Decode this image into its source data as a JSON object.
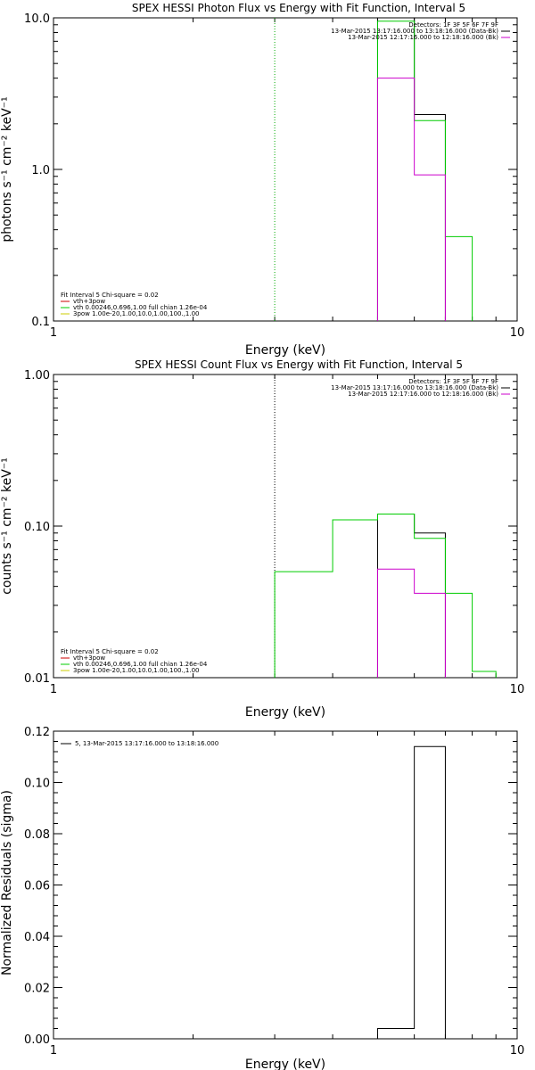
{
  "chart_data": [
    {
      "type": "line",
      "title": "SPEX HESSI Photon Flux vs Energy with Fit Function, Interval 5",
      "xlabel": "Energy (keV)",
      "ylabel": "photons s⁻¹ cm⁻² keV⁻¹",
      "xscale": "log",
      "yscale": "log",
      "xlim": [
        1,
        10
      ],
      "ylim": [
        0.1,
        10
      ],
      "xticks": [
        "1",
        "10"
      ],
      "yticks": [
        {
          "v": 0.1,
          "label": "0.1"
        },
        {
          "v": 1,
          "label": "1.0"
        },
        {
          "v": 10,
          "label": "10.0"
        }
      ],
      "vline": {
        "x": 3.0,
        "color": "#00aa00"
      },
      "legend": {
        "lines": [
          {
            "text": "Detectors: 1F 3F 5F 6F 7F 9F",
            "color": ""
          },
          {
            "text": "13-Mar-2015 13:17:16.000 to 13:18:16.000 (Data-Bk)",
            "color": "#000000"
          },
          {
            "text": "13-Mar-2015 12:17:16.000 to 12:18:16.000 (Bk)",
            "color": "#cc00cc"
          }
        ]
      },
      "fit_legend": {
        "lines": [
          {
            "text": "Fit Interval 5   Chi-square = 0.02",
            "color": ""
          },
          {
            "text": "vth+3pow",
            "color": "#cc0000"
          },
          {
            "text": "vth 0.00246,0.696,1.00  full chian 1.26e-04",
            "color": "#00cc00"
          },
          {
            "text": "3pow 1.00e-20,1.00,10.0,1.00,100.,1.00",
            "color": "#cccc00"
          }
        ]
      },
      "series": [
        {
          "color": "#000000",
          "bins": [
            [
              5.0,
              6.0,
              10.0
            ],
            [
              6.0,
              7.0,
              2.3
            ]
          ]
        },
        {
          "color": "#00cc00",
          "bins": [
            [
              5.0,
              6.0,
              9.5
            ],
            [
              6.0,
              7.0,
              2.1
            ],
            [
              7.0,
              8.0,
              0.36
            ]
          ]
        },
        {
          "color": "#cc00cc",
          "bins": [
            [
              5.0,
              6.0,
              4.0
            ],
            [
              6.0,
              7.0,
              0.92
            ]
          ]
        }
      ]
    },
    {
      "type": "line",
      "title": "SPEX HESSI Count Flux vs Energy with Fit Function, Interval 5",
      "xlabel": "Energy (keV)",
      "ylabel": "counts s⁻¹ cm⁻² keV⁻¹",
      "xscale": "log",
      "yscale": "log",
      "xlim": [
        1,
        10
      ],
      "ylim": [
        0.01,
        1
      ],
      "xticks": [
        "1",
        "10"
      ],
      "yticks": [
        {
          "v": 0.01,
          "label": "0.01"
        },
        {
          "v": 0.1,
          "label": "0.10"
        },
        {
          "v": 1,
          "label": "1.00"
        }
      ],
      "vline": {
        "x": 3.0,
        "color": "#000000"
      },
      "legend": {
        "lines": [
          {
            "text": "Detectors: 1F 3F 5F 6F 7F 9F",
            "color": ""
          },
          {
            "text": "13-Mar-2015 13:17:16.000 to 13:18:16.000 (Data-Bk)",
            "color": "#000000"
          },
          {
            "text": "13-Mar-2015 12:17:16.000 to 12:18:16.000 (Bk)",
            "color": "#cc00cc"
          }
        ]
      },
      "fit_legend": {
        "lines": [
          {
            "text": "Fit Interval 5   Chi-square = 0.02",
            "color": ""
          },
          {
            "text": "vth+3pow",
            "color": "#cc0000"
          },
          {
            "text": "vth 0.00246,0.696,1.00  full chian 1.26e-04",
            "color": "#00cc00"
          },
          {
            "text": "3pow 1.00e-20,1.00,10.0,1.00,100.,1.00",
            "color": "#cccc00"
          }
        ]
      },
      "series": [
        {
          "color": "#000000",
          "bins": [
            [
              5.0,
              6.0,
              0.12
            ],
            [
              6.0,
              7.0,
              0.09
            ]
          ]
        },
        {
          "color": "#00cc00",
          "bins": [
            [
              3.0,
              4.0,
              0.05
            ],
            [
              4.0,
              5.0,
              0.11
            ],
            [
              5.0,
              6.0,
              0.12
            ],
            [
              6.0,
              7.0,
              0.083
            ],
            [
              7.0,
              8.0,
              0.036
            ],
            [
              8.0,
              9.0,
              0.011
            ]
          ]
        },
        {
          "color": "#cc00cc",
          "bins": [
            [
              5.0,
              6.0,
              0.052
            ],
            [
              6.0,
              7.0,
              0.036
            ]
          ]
        }
      ]
    },
    {
      "type": "bar",
      "title": "",
      "xlabel": "Energy (keV)",
      "ylabel": "Normalized Residuals (sigma)",
      "xscale": "log",
      "yscale": "linear",
      "xlim": [
        1,
        10
      ],
      "ylim": [
        0,
        0.12
      ],
      "xticks": [
        "1",
        "10"
      ],
      "yticks": [
        {
          "v": 0.0,
          "label": "0.00"
        },
        {
          "v": 0.02,
          "label": "0.02"
        },
        {
          "v": 0.04,
          "label": "0.04"
        },
        {
          "v": 0.06,
          "label": "0.06"
        },
        {
          "v": 0.08,
          "label": "0.08"
        },
        {
          "v": 0.1,
          "label": "0.10"
        },
        {
          "v": 0.12,
          "label": "0.12"
        }
      ],
      "legend": {
        "lines": [
          {
            "text": "5, 13-Mar-2015 13:17:16.000 to 13:18:16.000",
            "color": "#000000"
          }
        ]
      },
      "series": [
        {
          "color": "#000000",
          "bins": [
            [
              5.0,
              6.0,
              0.004
            ],
            [
              6.0,
              7.0,
              0.114
            ]
          ]
        }
      ]
    }
  ]
}
